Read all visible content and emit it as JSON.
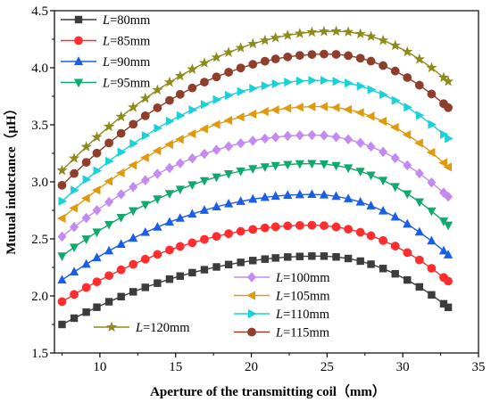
{
  "chart_data": {
    "type": "line",
    "xlabel": "Aperture of the transmitting coil（mm）",
    "ylabel": "Mutual inductance（μH）",
    "xlim": [
      7,
      35
    ],
    "ylim": [
      1.5,
      4.5
    ],
    "xticks": [
      "10",
      "15",
      "20",
      "25",
      "30",
      "35"
    ],
    "yticks": [
      "1.5",
      "2.0",
      "2.5",
      "3.0",
      "3.5",
      "4.0",
      "4.5"
    ],
    "grid": false,
    "series": [
      {
        "name": "80mm",
        "label_var": "L",
        "label_eq": "=",
        "color": "#3c3c3c",
        "marker": "square",
        "peak_x": 24.5,
        "peak_y": 2.35,
        "start_y": 1.75,
        "end_y": 1.9
      },
      {
        "name": "85mm",
        "label_var": "L",
        "label_eq": "=",
        "color": "#ff2d2d",
        "marker": "circle",
        "peak_x": 24.0,
        "peak_y": 2.62,
        "start_y": 1.95,
        "end_y": 2.13
      },
      {
        "name": "90mm",
        "label_var": "L",
        "label_eq": "=",
        "color": "#1a5ee8",
        "marker": "triangle-up",
        "peak_x": 24.0,
        "peak_y": 2.89,
        "start_y": 2.14,
        "end_y": 2.36
      },
      {
        "name": "95mm",
        "label_var": "L",
        "label_eq": "=",
        "color": "#11a86b",
        "marker": "triangle-down",
        "peak_x": 24.0,
        "peak_y": 3.16,
        "start_y": 2.35,
        "end_y": 2.62
      },
      {
        "name": "100mm",
        "label_var": "L",
        "label_eq": "=",
        "color": "#c38bf2",
        "marker": "diamond",
        "peak_x": 24.0,
        "peak_y": 3.41,
        "start_y": 2.52,
        "end_y": 2.87
      },
      {
        "name": "105mm",
        "label_var": "L",
        "label_eq": "=",
        "color": "#e09a10",
        "marker": "triangle-left",
        "peak_x": 24.5,
        "peak_y": 3.66,
        "start_y": 2.68,
        "end_y": 3.13
      },
      {
        "name": "110mm",
        "label_var": "L",
        "label_eq": "=",
        "color": "#18d2d8",
        "marker": "triangle-right",
        "peak_x": 24.5,
        "peak_y": 3.89,
        "start_y": 2.83,
        "end_y": 3.38
      },
      {
        "name": "115mm",
        "label_var": "L",
        "label_eq": "=",
        "color": "#8e3e2a",
        "marker": "circle",
        "peak_x": 25.0,
        "peak_y": 4.12,
        "start_y": 2.97,
        "end_y": 3.65
      },
      {
        "name": "120mm",
        "label_var": "L",
        "label_eq": "=",
        "color": "#8e8a1c",
        "marker": "star",
        "peak_x": 25.5,
        "peak_y": 4.32,
        "start_y": 3.1,
        "end_y": 3.88
      }
    ],
    "x_values": [
      7.5,
      8.3,
      9.1,
      9.8,
      10.6,
      11.4,
      12.2,
      13.0,
      13.8,
      14.6,
      15.3,
      16.1,
      16.9,
      17.7,
      18.5,
      19.3,
      20.1,
      20.9,
      21.6,
      22.4,
      23.2,
      24.0,
      24.8,
      25.6,
      26.4,
      27.2,
      27.9,
      28.7,
      29.5,
      30.3,
      31.1,
      31.9,
      32.7,
      33.0
    ],
    "legend_groups": [
      {
        "position": "top-left",
        "series": [
          0,
          1,
          2,
          3
        ]
      },
      {
        "position": "bottom-center",
        "series": [
          4,
          5,
          6,
          7
        ]
      },
      {
        "position": "bottom-left",
        "series": [
          8
        ]
      }
    ]
  }
}
